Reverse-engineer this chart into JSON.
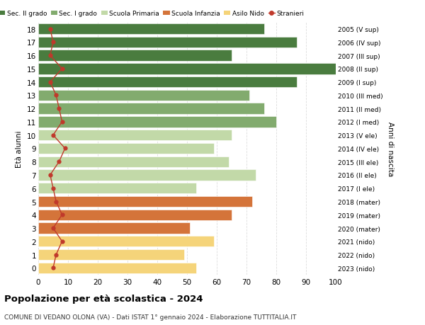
{
  "ages": [
    18,
    17,
    16,
    15,
    14,
    13,
    12,
    11,
    10,
    9,
    8,
    7,
    6,
    5,
    4,
    3,
    2,
    1,
    0
  ],
  "bar_values": [
    76,
    87,
    65,
    100,
    87,
    71,
    76,
    80,
    65,
    59,
    64,
    73,
    53,
    72,
    65,
    51,
    59,
    49,
    53
  ],
  "stranieri": [
    4,
    5,
    4,
    8,
    4,
    6,
    7,
    8,
    5,
    9,
    7,
    4,
    5,
    6,
    8,
    5,
    8,
    6,
    5
  ],
  "right_labels": [
    "2005 (V sup)",
    "2006 (IV sup)",
    "2007 (III sup)",
    "2008 (II sup)",
    "2009 (I sup)",
    "2010 (III med)",
    "2011 (II med)",
    "2012 (I med)",
    "2013 (V ele)",
    "2014 (IV ele)",
    "2015 (III ele)",
    "2016 (II ele)",
    "2017 (I ele)",
    "2018 (mater)",
    "2019 (mater)",
    "2020 (mater)",
    "2021 (nido)",
    "2022 (nido)",
    "2023 (nido)"
  ],
  "bar_color_map": [
    "#4a7c3f",
    "#4a7c3f",
    "#4a7c3f",
    "#4a7c3f",
    "#4a7c3f",
    "#82ab6e",
    "#82ab6e",
    "#82ab6e",
    "#c2d9a8",
    "#c2d9a8",
    "#c2d9a8",
    "#c2d9a8",
    "#c2d9a8",
    "#d4743a",
    "#d4743a",
    "#d4743a",
    "#f5d47a",
    "#f5d47a",
    "#f5d47a"
  ],
  "legend_labels": [
    "Sec. II grado",
    "Sec. I grado",
    "Scuola Primaria",
    "Scuola Infanzia",
    "Asilo Nido",
    "Stranieri"
  ],
  "legend_colors": [
    "#4a7c3f",
    "#82ab6e",
    "#c2d9a8",
    "#d4743a",
    "#f5d47a",
    "#c0392b"
  ],
  "title": "Popolazione per età scolastica - 2024",
  "subtitle": "COMUNE DI VEDANO OLONA (VA) - Dati ISTAT 1° gennaio 2024 - Elaborazione TUTTITALIA.IT",
  "ylabel_left": "Età alunni",
  "ylabel_right": "Anni di nascita",
  "xlim": [
    0,
    100
  ],
  "stranieri_color": "#c0392b",
  "bg_color": "#ffffff",
  "grid_color": "#dddddd"
}
